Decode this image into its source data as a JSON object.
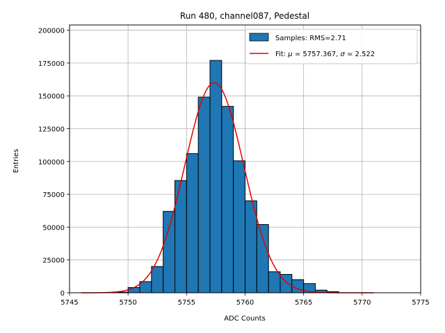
{
  "chart_data": {
    "type": "bar",
    "title": "Run 480, channel087, Pedestal",
    "xlabel": "ADC Counts",
    "ylabel": "Entries",
    "xlim": [
      5745,
      5775
    ],
    "ylim": [
      0,
      204000
    ],
    "x_ticks": [
      5745,
      5750,
      5755,
      5760,
      5765,
      5770,
      5775
    ],
    "x_tick_labels": [
      "5745",
      "5750",
      "5755",
      "5760",
      "5765",
      "5770",
      "5775"
    ],
    "y_ticks": [
      0,
      25000,
      50000,
      75000,
      100000,
      125000,
      150000,
      175000,
      200000
    ],
    "y_tick_labels": [
      "0",
      "25000",
      "50000",
      "75000",
      "100000",
      "125000",
      "150000",
      "175000",
      "200000"
    ],
    "grid": true,
    "legend_position": "top-right",
    "histogram": {
      "name": "Samples: RMS=2.71",
      "color": "#1f77b4",
      "edge_color": "#000000",
      "bin_edges": [
        5749,
        5750,
        5751,
        5752,
        5753,
        5754,
        5755,
        5756,
        5757,
        5758,
        5759,
        5760,
        5761,
        5762,
        5763,
        5764,
        5765,
        5766,
        5767,
        5768
      ],
      "values": [
        500,
        4000,
        8500,
        20000,
        62000,
        85500,
        106000,
        149000,
        177000,
        142000,
        100500,
        70000,
        52000,
        16000,
        14000,
        10000,
        7000,
        2000,
        800
      ]
    },
    "fit": {
      "name": "Fit: μ = 5757.367, σ = 2.522",
      "color": "#e00000",
      "mu": 5757.367,
      "sigma": 2.522,
      "peak": 160000,
      "x_range": [
        5746,
        5771
      ]
    }
  },
  "legend": {
    "samples_label": "Samples: RMS=2.71",
    "fit_prefix": "Fit: ",
    "fit_mu": "μ",
    "fit_mid": " = 5757.367, ",
    "fit_sigma": "σ",
    "fit_suffix": " = 2.522"
  }
}
